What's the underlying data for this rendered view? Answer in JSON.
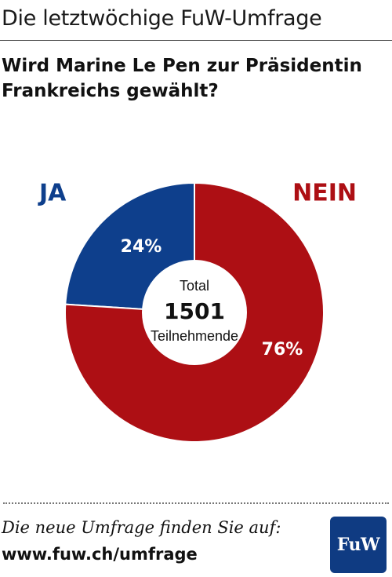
{
  "header": {
    "title": "Die letztwöchige FuW-Umfrage"
  },
  "question": "Wird Marine Le Pen zur Präsidentin Frankreichs gewählt?",
  "chart_data": {
    "type": "pie",
    "categories": [
      "JA",
      "NEIN"
    ],
    "values": [
      24,
      76
    ],
    "value_labels": [
      "24%",
      "76%"
    ],
    "colors": [
      "#0e3f8c",
      "#ad0f14"
    ],
    "center": {
      "line1": "Total",
      "line2": "1501",
      "line3": "Teilnehmende"
    },
    "style": "donut"
  },
  "footer": {
    "note": "Die neue Umfrage finden Sie auf:",
    "url": "www.fuw.ch/umfrage",
    "logo_text": "FuW"
  }
}
